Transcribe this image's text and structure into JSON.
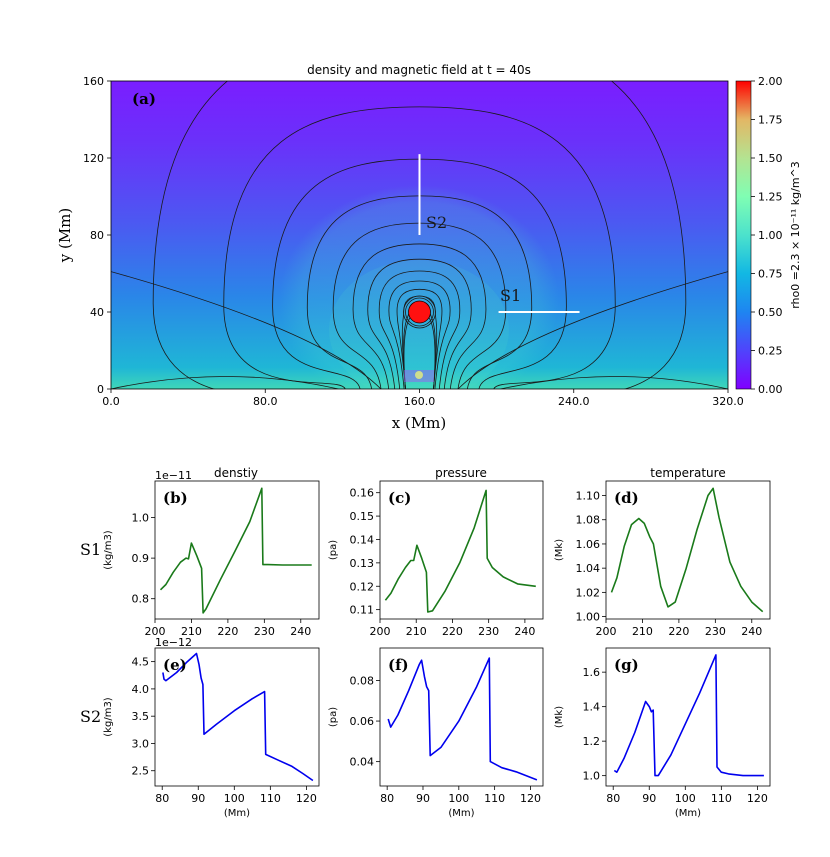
{
  "chart_data": [
    {
      "id": "a",
      "type": "heatmap",
      "panel_label": "(a)",
      "title": "density and magnetic field at t = 40s",
      "xlabel": "x  (Mm)",
      "ylabel": "y (Mm)",
      "xlim": [
        0,
        320
      ],
      "ylim": [
        0,
        160
      ],
      "xticks": [
        "0.0",
        "80.0",
        "160.0",
        "240.0",
        "320.0"
      ],
      "yticks": [
        "0",
        "40",
        "80",
        "120",
        "160"
      ],
      "colorbar": {
        "label": "rho0 =2.3 × 10⁻¹¹ kg/m^3",
        "range": [
          0,
          2
        ],
        "ticks": [
          "0.00",
          "0.25",
          "0.50",
          "0.75",
          "1.00",
          "1.25",
          "1.50",
          "1.75",
          "2.00"
        ],
        "colormap": "rainbow"
      },
      "blob_center": [
        160,
        40
      ],
      "blob_radius": 2.2,
      "cuts": [
        {
          "name": "S1",
          "from": [
            201,
            40
          ],
          "to": [
            243,
            40
          ]
        },
        {
          "name": "S2",
          "from": [
            160,
            80
          ],
          "to": [
            160,
            122
          ]
        }
      ],
      "cut_labels": [
        "S2",
        "S1"
      ]
    },
    {
      "id": "b",
      "type": "line",
      "panel_label": "(b)",
      "row_label": "S1",
      "title": "denstiy",
      "ylabel": "(kg/m3)",
      "offset": "1e−11",
      "color": "#1a7a1a",
      "xlim": [
        200,
        245
      ],
      "ylim": [
        0.75,
        1.09
      ],
      "xticks": [
        200,
        210,
        220,
        230,
        240
      ],
      "yticks": [
        0.8,
        0.9,
        1.0
      ],
      "x": [
        201.5,
        203,
        205,
        207,
        208.5,
        209.2,
        210,
        211.5,
        212.8,
        213.2,
        214,
        218,
        222,
        226,
        229.3,
        229.6,
        231,
        235,
        240,
        243
      ],
      "y": [
        0.822,
        0.835,
        0.865,
        0.89,
        0.9,
        0.898,
        0.937,
        0.905,
        0.875,
        0.765,
        0.775,
        0.848,
        0.918,
        0.99,
        1.072,
        0.884,
        0.884,
        0.883,
        0.883,
        0.883
      ]
    },
    {
      "id": "c",
      "type": "line",
      "panel_label": "(c)",
      "title": "pressure",
      "ylabel": "(pa)",
      "color": "#1a7a1a",
      "xlim": [
        200,
        245
      ],
      "ylim": [
        0.106,
        0.165
      ],
      "xticks": [
        200,
        210,
        220,
        230,
        240
      ],
      "yticks": [
        0.11,
        0.12,
        0.13,
        0.14,
        0.15,
        0.16
      ],
      "x": [
        201.5,
        203,
        205,
        207,
        208.5,
        209.3,
        210.2,
        211.5,
        212.8,
        213.2,
        214.5,
        218,
        222,
        226,
        229.3,
        229.6,
        231,
        234,
        238,
        243
      ],
      "y": [
        0.114,
        0.117,
        0.123,
        0.128,
        0.131,
        0.131,
        0.1375,
        0.132,
        0.126,
        0.109,
        0.1095,
        0.118,
        0.13,
        0.145,
        0.161,
        0.132,
        0.128,
        0.124,
        0.121,
        0.12
      ]
    },
    {
      "id": "d",
      "type": "line",
      "panel_label": "(d)",
      "title": "temperature",
      "ylabel": "(Mk)",
      "color": "#1a7a1a",
      "xlim": [
        200,
        245
      ],
      "ylim": [
        0.998,
        1.112
      ],
      "xticks": [
        200,
        210,
        220,
        230,
        240
      ],
      "yticks": [
        1.0,
        1.02,
        1.04,
        1.06,
        1.08,
        1.1
      ],
      "x": [
        201.5,
        203,
        205,
        207,
        209,
        210.5,
        212,
        213,
        215,
        217,
        219,
        222,
        225,
        228,
        229.4,
        231,
        234,
        237,
        240,
        243
      ],
      "y": [
        1.02,
        1.032,
        1.058,
        1.076,
        1.081,
        1.077,
        1.066,
        1.06,
        1.025,
        1.008,
        1.012,
        1.04,
        1.072,
        1.1,
        1.106,
        1.082,
        1.045,
        1.025,
        1.012,
        1.004
      ]
    },
    {
      "id": "e",
      "type": "line",
      "panel_label": "(e)",
      "row_label": "S2",
      "ylabel": "(kg/m3)",
      "xlabel": "(Mm)",
      "offset": "1e−12",
      "color": "#0000ee",
      "xlim": [
        78,
        123.5
      ],
      "ylim": [
        2.22,
        4.75
      ],
      "xticks": [
        80,
        90,
        100,
        110,
        120
      ],
      "yticks": [
        2.5,
        3.0,
        3.5,
        4.0,
        4.5
      ],
      "x": [
        80.2,
        80.5,
        81,
        84,
        87,
        89.5,
        90.2,
        90.8,
        91.3,
        91.6,
        95,
        100,
        105,
        108.4,
        108.7,
        112,
        116,
        119,
        121.8
      ],
      "y": [
        4.3,
        4.18,
        4.15,
        4.3,
        4.5,
        4.65,
        4.45,
        4.2,
        4.08,
        3.17,
        3.35,
        3.6,
        3.82,
        3.95,
        2.8,
        2.7,
        2.58,
        2.45,
        2.32
      ]
    },
    {
      "id": "f",
      "type": "line",
      "panel_label": "(f)",
      "ylabel": "(pa)",
      "xlabel": "(Mm)",
      "color": "#0000ee",
      "xlim": [
        78,
        123.5
      ],
      "ylim": [
        0.028,
        0.096
      ],
      "xticks": [
        80,
        90,
        100,
        110,
        120
      ],
      "yticks": [
        0.04,
        0.06,
        0.08
      ],
      "x": [
        80.3,
        81,
        83,
        86,
        89,
        89.6,
        90.4,
        91,
        91.6,
        92,
        95,
        100,
        105,
        108.5,
        108.8,
        112,
        116,
        121.8
      ],
      "y": [
        0.061,
        0.057,
        0.063,
        0.075,
        0.088,
        0.09,
        0.082,
        0.077,
        0.075,
        0.043,
        0.047,
        0.06,
        0.077,
        0.091,
        0.04,
        0.037,
        0.035,
        0.031
      ]
    },
    {
      "id": "g",
      "type": "line",
      "panel_label": "(g)",
      "ylabel": "(Mk)",
      "xlabel": "(Mm)",
      "color": "#0000ee",
      "xlim": [
        78,
        123.5
      ],
      "ylim": [
        0.94,
        1.74
      ],
      "xticks": [
        80,
        90,
        100,
        110,
        120
      ],
      "yticks": [
        1.0,
        1.2,
        1.4,
        1.6
      ],
      "x": [
        80.3,
        81,
        83,
        86,
        89,
        90,
        90.6,
        91.1,
        91.6,
        92.5,
        96,
        100,
        104,
        108.5,
        108.8,
        110,
        112,
        116,
        121.8
      ],
      "y": [
        1.03,
        1.02,
        1.1,
        1.25,
        1.43,
        1.4,
        1.37,
        1.38,
        1.0,
        1.0,
        1.12,
        1.3,
        1.48,
        1.7,
        1.05,
        1.02,
        1.01,
        1.0,
        1.0
      ]
    }
  ]
}
